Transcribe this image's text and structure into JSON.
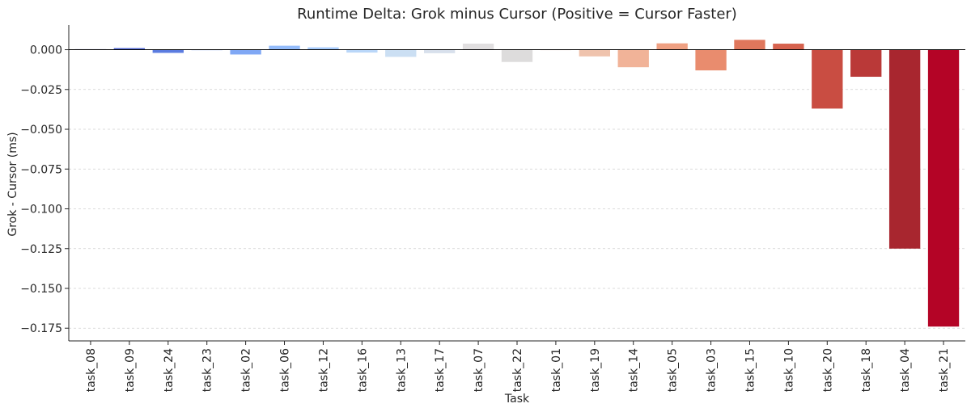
{
  "chart_data": {
    "type": "bar",
    "title": "Runtime Delta: Grok minus Cursor (Positive = Cursor Faster)",
    "xlabel": "Task",
    "ylabel": "Grok - Cursor (ms)",
    "ylim": [
      -0.183,
      0.0155
    ],
    "yticks": [
      0.0,
      -0.025,
      -0.05,
      -0.075,
      -0.1,
      -0.125,
      -0.15,
      -0.175
    ],
    "ytick_labels": [
      "0.000",
      "−0.025",
      "−0.050",
      "−0.075",
      "−0.100",
      "−0.125",
      "−0.150",
      "−0.175"
    ],
    "grid": "horizontal-dashed",
    "categories": [
      "task_08",
      "task_09",
      "task_24",
      "task_23",
      "task_02",
      "task_06",
      "task_12",
      "task_16",
      "task_13",
      "task_17",
      "task_07",
      "task_22",
      "task_01",
      "task_19",
      "task_14",
      "task_05",
      "task_03",
      "task_15",
      "task_10",
      "task_20",
      "task_18",
      "task_04",
      "task_21"
    ],
    "values": [
      0.0003,
      0.001,
      -0.002,
      -0.0003,
      -0.003,
      0.0025,
      0.0015,
      -0.0018,
      -0.0045,
      -0.0022,
      0.0038,
      -0.0077,
      0.0,
      -0.0042,
      -0.011,
      0.004,
      -0.013,
      0.0062,
      0.0038,
      -0.037,
      -0.017,
      -0.125,
      -0.174
    ],
    "colors": [
      "#3b4cc0",
      "#4a63d2",
      "#5b7ce0",
      "#6d93ec",
      "#80a8f5",
      "#94bcfb",
      "#a7ccfd",
      "#bad7f9",
      "#cbdff3",
      "#d8e0ec",
      "#e1dfe0",
      "#dddcdc",
      "#ebd2c5",
      "#efc3ad",
      "#f1b398",
      "#efa082",
      "#e98c6e",
      "#e0775c",
      "#d6624e",
      "#c94d42",
      "#ba3938",
      "#a8262f",
      "#b40426"
    ]
  }
}
